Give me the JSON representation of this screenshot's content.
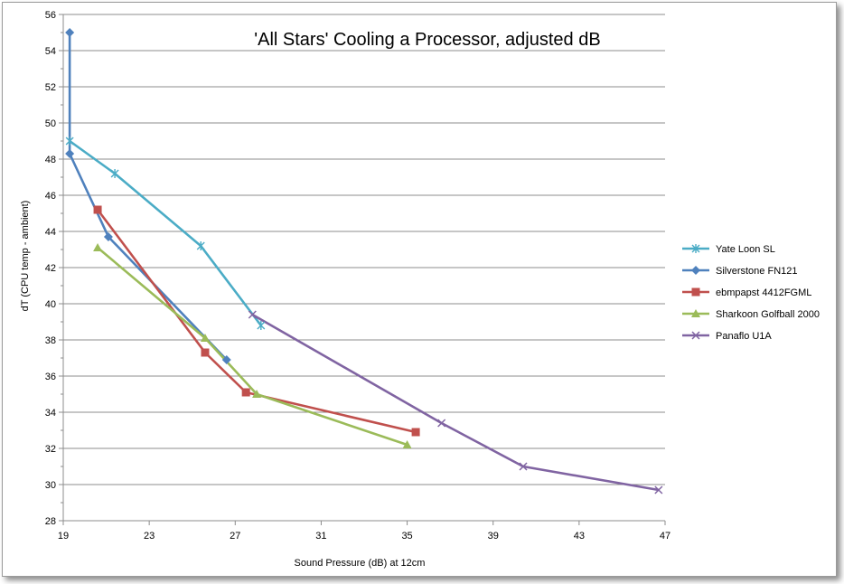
{
  "chart_data": {
    "type": "line",
    "title": "'All Stars' Cooling a Processor, adjusted dB",
    "xlabel": "Sound Pressure (dB) at 12cm",
    "ylabel": "dT  (CPU temp - ambient)",
    "xlim": [
      19,
      47
    ],
    "ylim": [
      28,
      56
    ],
    "xticks": [
      19,
      23,
      27,
      31,
      35,
      39,
      43,
      47
    ],
    "yticks": [
      28,
      30,
      32,
      34,
      36,
      38,
      40,
      42,
      44,
      46,
      48,
      50,
      52,
      54,
      56
    ],
    "grid": true,
    "legend_position": "right",
    "series": [
      {
        "name": "Yate Loon SL",
        "color": "#4bacc6",
        "marker": "asterisk",
        "points": [
          [
            19.3,
            49.0
          ],
          [
            21.4,
            47.2
          ],
          [
            25.4,
            43.2
          ],
          [
            28.2,
            38.8
          ]
        ]
      },
      {
        "name": "Silverstone FN121",
        "color": "#4f81bd",
        "marker": "diamond",
        "points": [
          [
            19.3,
            55.0
          ],
          [
            19.3,
            48.3
          ],
          [
            21.1,
            43.7
          ],
          [
            26.6,
            36.9
          ]
        ]
      },
      {
        "name": "ebmpapst 4412FGML",
        "color": "#c0504d",
        "marker": "square",
        "points": [
          [
            20.6,
            45.2
          ],
          [
            25.6,
            37.3
          ],
          [
            27.5,
            35.1
          ],
          [
            35.4,
            32.9
          ]
        ]
      },
      {
        "name": "Sharkoon Golfball 2000",
        "color": "#9bbb59",
        "marker": "triangle",
        "points": [
          [
            20.6,
            43.1
          ],
          [
            25.6,
            38.1
          ],
          [
            28.0,
            35.0
          ],
          [
            35.0,
            32.2
          ]
        ]
      },
      {
        "name": "Panaflo U1A",
        "color": "#8064a2",
        "marker": "x",
        "points": [
          [
            27.8,
            39.4
          ],
          [
            36.6,
            33.4
          ],
          [
            40.4,
            31.0
          ],
          [
            46.7,
            29.7
          ]
        ]
      }
    ]
  }
}
